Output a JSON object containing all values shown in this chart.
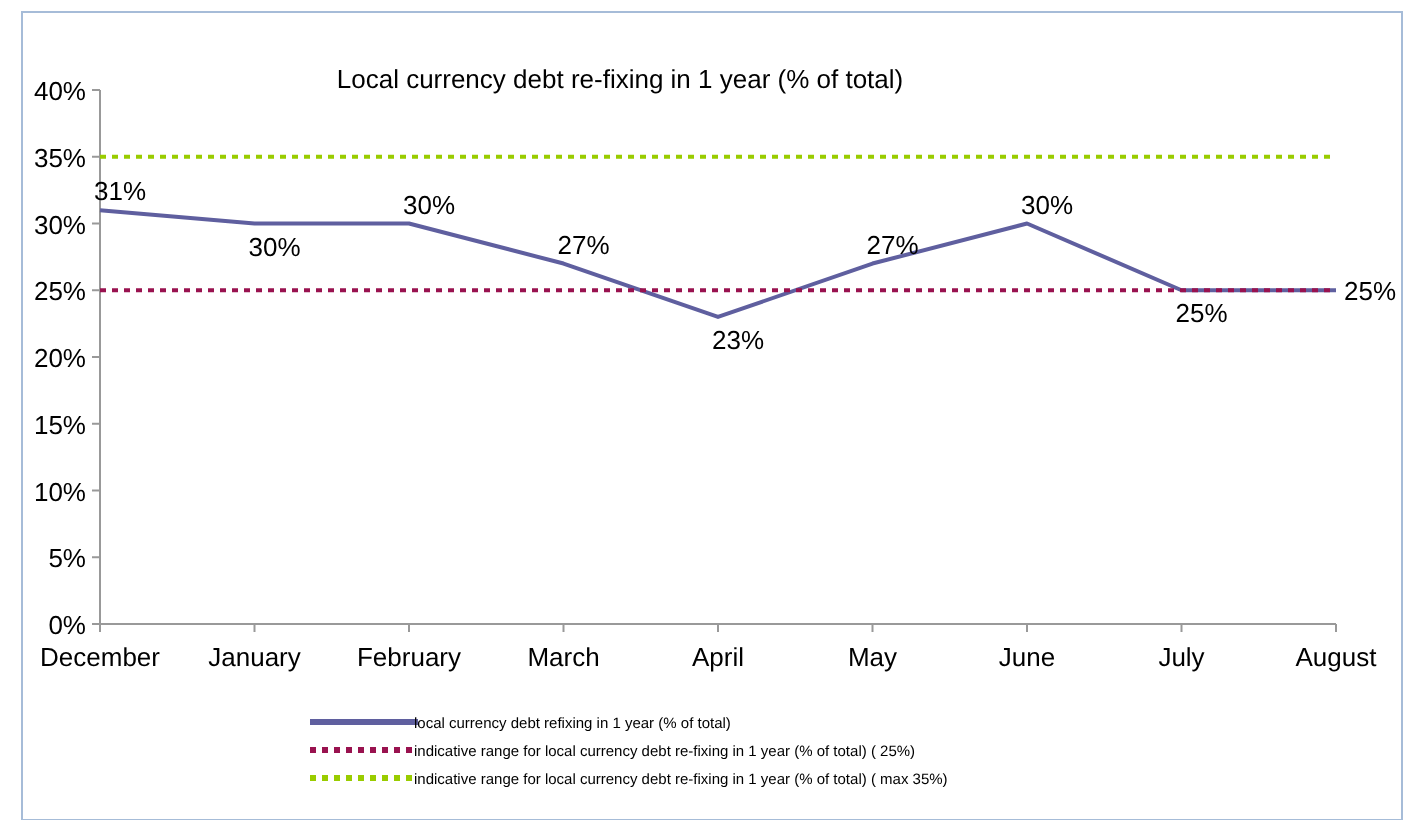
{
  "chart_data": {
    "type": "line",
    "title": "Local currency debt re-fixing in 1 year (% of total)",
    "categories": [
      "December",
      "January",
      "February",
      "March",
      "April",
      "May",
      "June",
      "July",
      "August"
    ],
    "series": [
      {
        "name": "local currency debt refixing in 1 year (% of total)",
        "color": "#5f5f9f",
        "line_style": "solid",
        "values": [
          31,
          30,
          30,
          27,
          23,
          27,
          30,
          25,
          25
        ],
        "value_labels": [
          "31%",
          "30%",
          "30%",
          "27%",
          "23%",
          "27%",
          "30%",
          "25%",
          "25%"
        ]
      },
      {
        "name": "indicative range for local currency debt re-fixing in 1 year (% of total) (  25%)",
        "color": "#99124f",
        "line_style": "dotted",
        "values": [
          25,
          25,
          25,
          25,
          25,
          25,
          25,
          25,
          25
        ]
      },
      {
        "name": "indicative range for local currency debt re-fixing in 1 year (% of total) ( max 35%)",
        "color": "#99cc00",
        "line_style": "dotted",
        "values": [
          35,
          35,
          35,
          35,
          35,
          35,
          35,
          35,
          35
        ]
      }
    ],
    "ylim": [
      0,
      40
    ],
    "yticks": [
      {
        "value": 0,
        "label": "0%"
      },
      {
        "value": 5,
        "label": "5%"
      },
      {
        "value": 10,
        "label": "10%"
      },
      {
        "value": 15,
        "label": "15%"
      },
      {
        "value": 20,
        "label": "20%"
      },
      {
        "value": 25,
        "label": "25%"
      },
      {
        "value": 30,
        "label": "30%"
      },
      {
        "value": 35,
        "label": "35%"
      },
      {
        "value": 40,
        "label": "40%"
      }
    ],
    "grid": false,
    "legend": "bottom",
    "marker": "none"
  }
}
